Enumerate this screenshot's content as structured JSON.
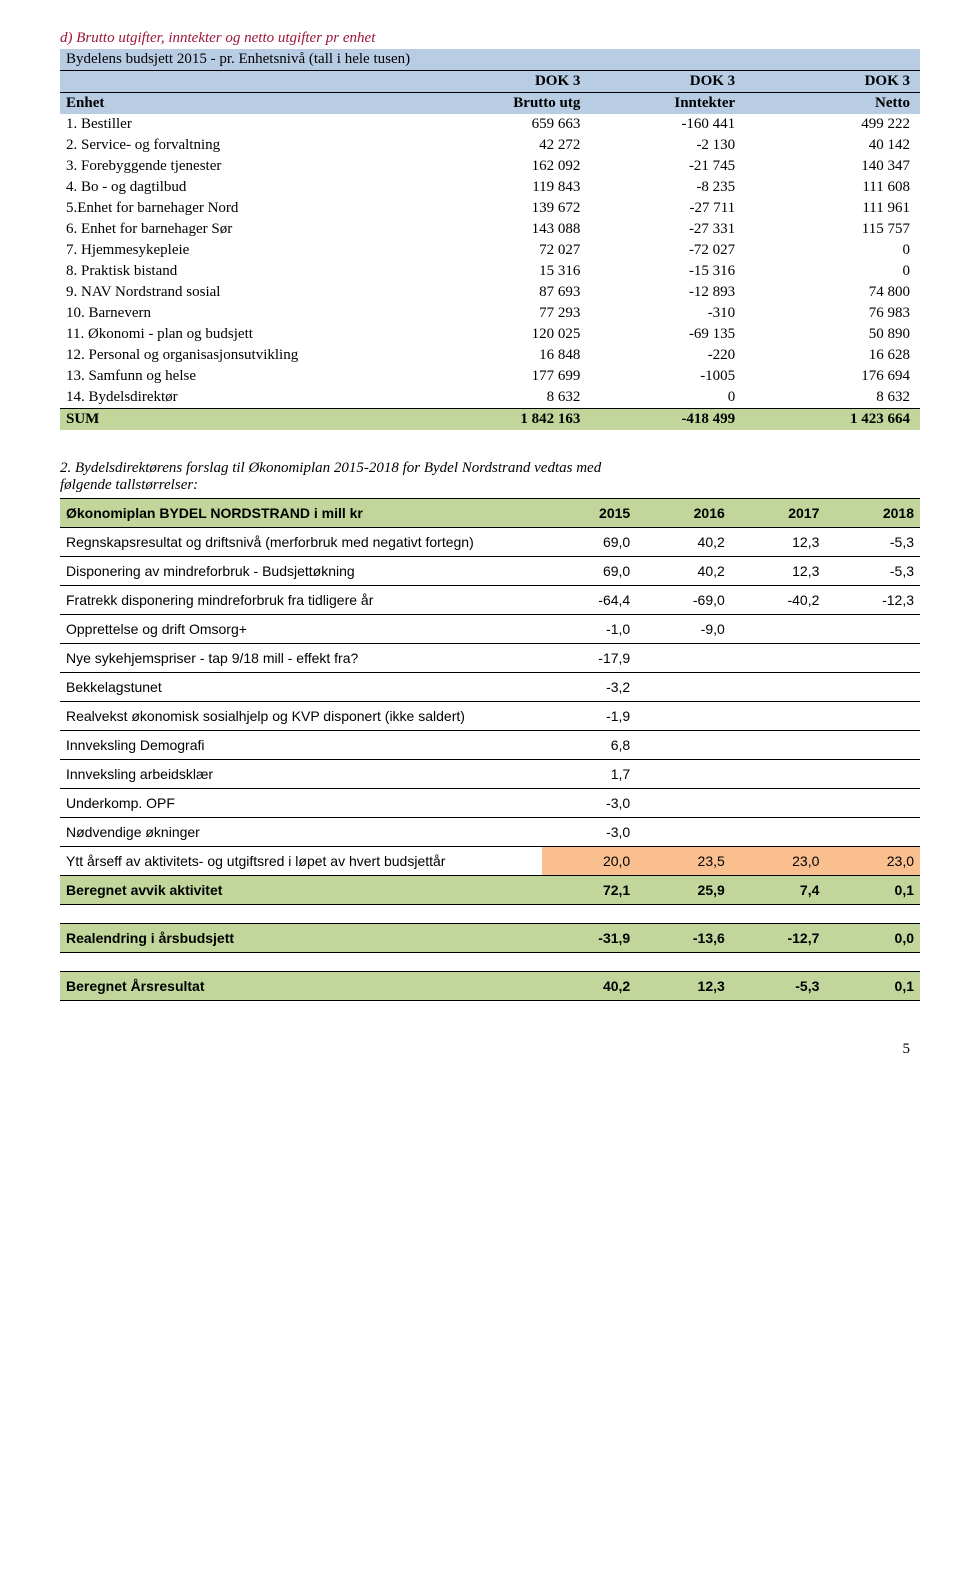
{
  "section1": {
    "title": "d) Brutto utgifter, inntekter og netto utgifter pr enhet",
    "header_line1": "Bydelens budsjett 2015 - pr. Enhetsnivå (tall i hele tusen)",
    "col_dok": "DOK 3",
    "col_enhet": "Enhet",
    "col_brutto": "Brutto utg",
    "col_inntekter": "Inntekter",
    "col_netto": "Netto",
    "rows": [
      {
        "label": "1. Bestiller",
        "a": "659 663",
        "b": "-160 441",
        "c": "499 222"
      },
      {
        "label": "2. Service- og forvaltning",
        "a": "42 272",
        "b": "-2 130",
        "c": "40 142"
      },
      {
        "label": "3. Forebyggende tjenester",
        "a": "162 092",
        "b": "-21 745",
        "c": "140 347"
      },
      {
        "label": "4. Bo - og dagtilbud",
        "a": "119 843",
        "b": "-8 235",
        "c": "111 608"
      },
      {
        "label": "5.Enhet for barnehager Nord",
        "a": "139 672",
        "b": "-27 711",
        "c": "111 961"
      },
      {
        "label": "6. Enhet for barnehager  Sør",
        "a": "143 088",
        "b": "-27 331",
        "c": "115 757"
      },
      {
        "label": "7. Hjemmesykepleie",
        "a": "72 027",
        "b": "-72 027",
        "c": "0"
      },
      {
        "label": "8. Praktisk bistand",
        "a": "15 316",
        "b": "-15 316",
        "c": "0"
      },
      {
        "label": "9. NAV Nordstrand sosial",
        "a": "87 693",
        "b": "-12 893",
        "c": "74 800"
      },
      {
        "label": "10. Barnevern",
        "a": "77 293",
        "b": "-310",
        "c": "76 983"
      },
      {
        "label": "11. Økonomi - plan og budsjett",
        "a": "120 025",
        "b": "-69 135",
        "c": "50 890"
      },
      {
        "label": "12. Personal og organisasjonsutvikling",
        "a": "16 848",
        "b": "-220",
        "c": "16 628"
      },
      {
        "label": "13. Samfunn og helse",
        "a": "177 699",
        "b": "-1005",
        "c": "176 694"
      },
      {
        "label": "14. Bydelsdirektør",
        "a": "8 632",
        "b": "0",
        "c": "8 632"
      }
    ],
    "sum": {
      "label": "SUM",
      "a": "1 842 163",
      "b": "-418 499",
      "c": "1 423 664"
    }
  },
  "section2": {
    "title_line1": "2. Bydelsdirektørens forslag til Økonomiplan 2015-2018 for Bydel Nordstrand vedtas med",
    "title_line2": "følgende tallstørrelser:",
    "header_label": "Økonomiplan BYDEL NORDSTRAND   i mill kr",
    "years": [
      "2015",
      "2016",
      "2017",
      "2018"
    ],
    "rows": [
      {
        "label": "Regnskapsresultat og driftsnivå (merforbruk med negativt fortegn)",
        "v": [
          "69,0",
          "40,2",
          "12,3",
          "-5,3"
        ],
        "hl": false
      },
      {
        "label": "Disponering av mindreforbruk - Budsjettøkning",
        "v": [
          "69,0",
          "40,2",
          "12,3",
          "-5,3"
        ],
        "hl": false
      },
      {
        "label": "Fratrekk disponering mindreforbruk fra tidligere år",
        "v": [
          "-64,4",
          "-69,0",
          "-40,2",
          "-12,3"
        ],
        "hl": false
      },
      {
        "label": "Opprettelse og drift Omsorg+",
        "v": [
          "-1,0",
          "-9,0",
          "",
          ""
        ],
        "hl": false
      },
      {
        "label": "Nye sykehjemspriser - tap 9/18 mill - effekt fra?",
        "v": [
          "-17,9",
          "",
          "",
          ""
        ],
        "hl": false
      },
      {
        "label": "Bekkelagstunet",
        "v": [
          "-3,2",
          "",
          "",
          ""
        ],
        "hl": false
      },
      {
        "label": "Realvekst økonomisk sosialhjelp og KVP disponert (ikke saldert)",
        "v": [
          "-1,9",
          "",
          "",
          ""
        ],
        "hl": false
      },
      {
        "label": "Innveksling Demografi",
        "v": [
          "6,8",
          "",
          "",
          ""
        ],
        "hl": false
      },
      {
        "label": "Innveksling arbeidsklær",
        "v": [
          "1,7",
          "",
          "",
          ""
        ],
        "hl": false
      },
      {
        "label": "Underkomp. OPF",
        "v": [
          "-3,0",
          "",
          "",
          ""
        ],
        "hl": false
      },
      {
        "label": "Nødvendige økninger",
        "v": [
          "-3,0",
          "",
          "",
          ""
        ],
        "hl": false
      },
      {
        "label": "Ytt årseff av aktivitets- og utgiftsred i løpet av hvert budsjettår",
        "v": [
          "20,0",
          "23,5",
          "23,0",
          "23,0"
        ],
        "hl": true
      }
    ],
    "sum": {
      "label": "Beregnet avvik aktivitet",
      "v": [
        "72,1",
        "25,9",
        "7,4",
        "0,1"
      ]
    },
    "real": {
      "label": "Realendring i årsbudsjett",
      "v": [
        "-31,9",
        "-13,6",
        "-12,7",
        "0,0"
      ]
    },
    "result": {
      "label": "Beregnet  Årsresultat",
      "v": [
        "40,2",
        "12,3",
        "-5,3",
        "0,1"
      ]
    }
  },
  "page_number": "5"
}
